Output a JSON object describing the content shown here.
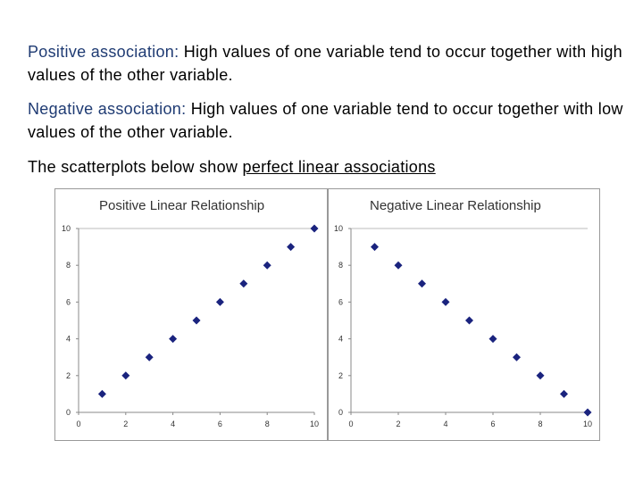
{
  "intro": {
    "positive_term": "Positive association:",
    "positive_text": " High values of one variable tend to occur together with high values of the other variable.",
    "negative_term": "Negative association:",
    "negative_text": " High values of one variable tend to occur together with low values of the other variable.",
    "scatter_prefix": "The scatterplots below show ",
    "scatter_link": "perfect linear associations"
  },
  "colors": {
    "term": "#1f3b73",
    "marker": "#1a237e",
    "grid": "#bbbbbb"
  },
  "chart_data": [
    {
      "type": "scatter",
      "title": "Positive Linear Relationship",
      "xlim": [
        0,
        10
      ],
      "ylim": [
        0,
        10
      ],
      "xticks": [
        "0",
        "2",
        "4",
        "6",
        "8",
        "10"
      ],
      "yticks": [
        "0",
        "2",
        "4",
        "6",
        "8",
        "10"
      ],
      "grid": "horizontal-top",
      "x": [
        1,
        2,
        3,
        4,
        5,
        6,
        7,
        8,
        9,
        10
      ],
      "y": [
        1,
        2,
        3,
        4,
        5,
        6,
        7,
        8,
        9,
        10
      ]
    },
    {
      "type": "scatter",
      "title": "Negative Linear Relationship",
      "xlim": [
        0,
        10
      ],
      "ylim": [
        0,
        10
      ],
      "xticks": [
        "0",
        "2",
        "4",
        "6",
        "8",
        "10"
      ],
      "yticks": [
        "0",
        "2",
        "4",
        "6",
        "8",
        "10"
      ],
      "grid": "horizontal-top",
      "x": [
        1,
        2,
        3,
        4,
        5,
        6,
        7,
        8,
        9,
        10
      ],
      "y": [
        9,
        8,
        7,
        6,
        5,
        4,
        3,
        2,
        1,
        0
      ]
    }
  ]
}
